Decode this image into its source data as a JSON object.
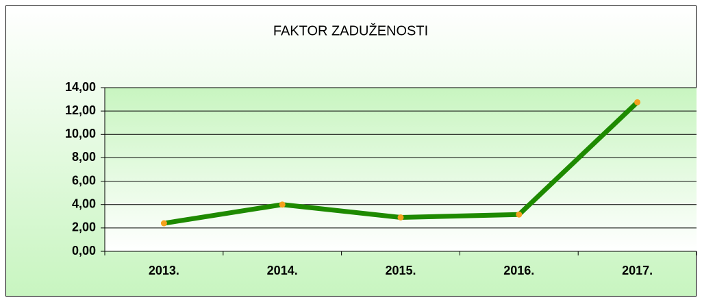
{
  "chart_data": {
    "type": "line",
    "title": "FAKTOR  ZADUŽENOSTI",
    "categories": [
      "2013.",
      "2014.",
      "2015.",
      "2016.",
      "2017."
    ],
    "values": [
      2.4,
      4.0,
      2.9,
      3.15,
      12.75
    ],
    "color": "#1e8a00",
    "marker_color": "#f5a01e",
    "ylim": [
      0,
      14
    ],
    "yticks": [
      {
        "value": 0,
        "label": "0,00"
      },
      {
        "value": 2,
        "label": "2,00"
      },
      {
        "value": 4,
        "label": "4,00"
      },
      {
        "value": 6,
        "label": "6,00"
      },
      {
        "value": 8,
        "label": "8,00"
      },
      {
        "value": 10,
        "label": "10,00"
      },
      {
        "value": 12,
        "label": "12,00"
      },
      {
        "value": 14,
        "label": "14,00"
      }
    ],
    "grid": true
  }
}
